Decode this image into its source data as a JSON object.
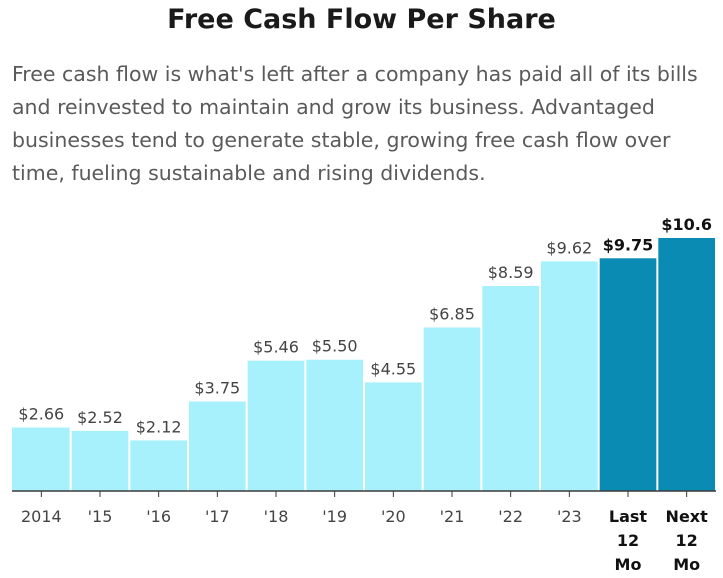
{
  "chart_data": {
    "type": "bar",
    "title": "Free Cash Flow Per Share",
    "subtitle": "Free cash flow is what's left after a company has paid all of its bills and reinvested to maintain and grow its business. Advantaged businesses tend to generate stable, growing free cash flow over time, fueling sustainable and rising dividends.",
    "categories": [
      "2014",
      "'15",
      "'16",
      "'17",
      "'18",
      "'19",
      "'20",
      "'21",
      "'22",
      "'23",
      "Last 12 Mo",
      "Next 12 Mo"
    ],
    "values": [
      2.66,
      2.52,
      2.12,
      3.75,
      5.46,
      5.5,
      4.55,
      6.85,
      8.59,
      9.62,
      9.75,
      10.6
    ],
    "value_labels": [
      "$2.66",
      "$2.52",
      "$2.12",
      "$3.75",
      "$5.46",
      "$5.50",
      "$4.55",
      "$6.85",
      "$8.59",
      "$9.62",
      "$9.75",
      "$10.6"
    ],
    "highlighted": [
      false,
      false,
      false,
      false,
      false,
      false,
      false,
      false,
      false,
      false,
      true,
      true
    ],
    "ylim": [
      0,
      10.6
    ],
    "grid": false,
    "colors": {
      "bar": "#a6f1fb",
      "bar_highlight": "#0a8bb4",
      "axis": "#3a3a3a"
    }
  }
}
